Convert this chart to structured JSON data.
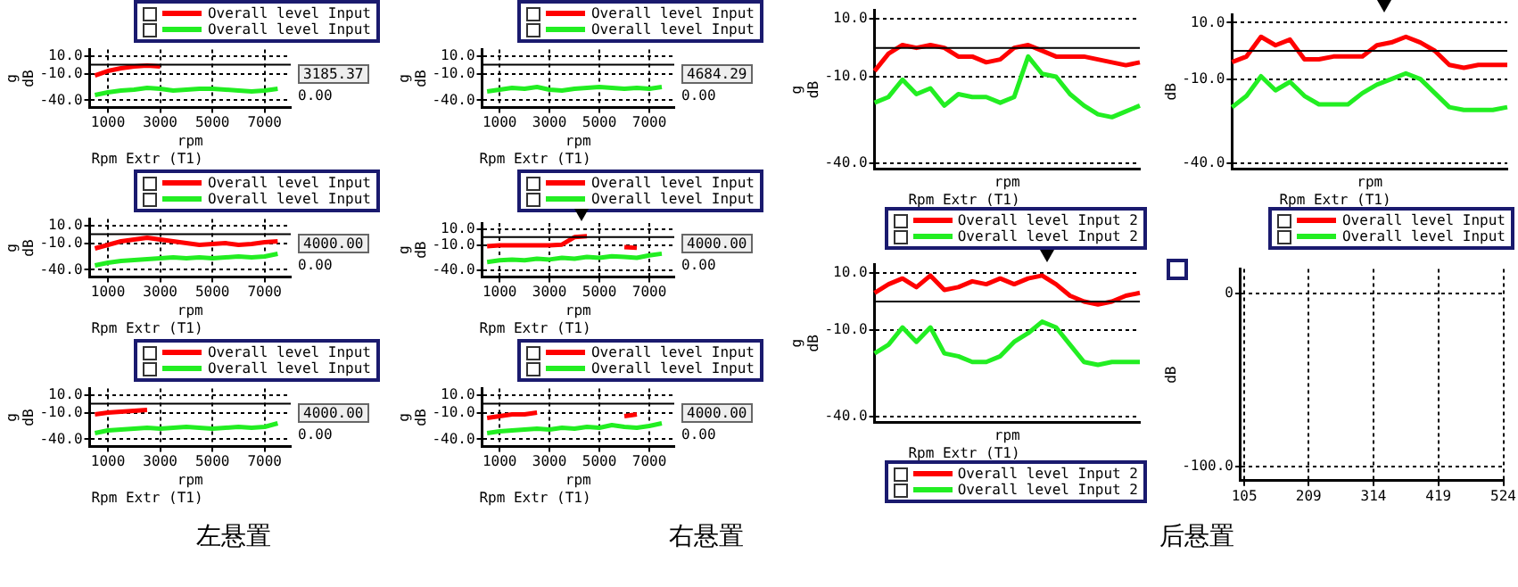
{
  "chart_data": [
    {
      "type": "line",
      "xlabel": "rpm",
      "subtitle": "Rpm Extr (T1)",
      "ylabel": "g\ndB",
      "x": [
        500,
        1000,
        1500,
        2000,
        2500,
        3000,
        3500,
        4000,
        4500,
        5000,
        5500,
        6000,
        6500,
        7000,
        7500
      ],
      "xlim": [
        300,
        8000
      ],
      "xticks": [
        1000,
        3000,
        5000,
        7000
      ],
      "ylim": [
        -48,
        17
      ],
      "yticks": [
        {
          "value": 10,
          "label": "10.0"
        },
        {
          "value": -10,
          "label": "-10.0"
        },
        {
          "value": -40,
          "label": "-40.0"
        }
      ],
      "grid": true,
      "legend": "top right",
      "marker": "none",
      "ref_lines": [
        {
          "axis": "y",
          "value": 0
        }
      ],
      "annotations": [
        "3185.37",
        "0.00"
      ],
      "series": [
        {
          "name": "Overall level Input",
          "color": "#ff0000",
          "values": [
            -12,
            -7,
            -4,
            -2,
            -1,
            -2,
            null,
            null,
            null,
            null,
            null,
            null,
            null,
            null,
            null
          ]
        },
        {
          "name": "Overall level Input",
          "color": "#22ee22",
          "values": [
            -34,
            -31,
            -29,
            -28,
            -26,
            -27,
            -29,
            -28,
            -27,
            -27,
            -28,
            -29,
            -30,
            -29,
            -27
          ]
        }
      ]
    },
    {
      "type": "line",
      "xlabel": "rpm",
      "subtitle": "Rpm Extr (T1)",
      "ylabel": "g\ndB",
      "x": [
        500,
        1000,
        1500,
        2000,
        2500,
        3000,
        3500,
        4000,
        4500,
        5000,
        5500,
        6000,
        6500,
        7000,
        7500
      ],
      "xlim": [
        300,
        8000
      ],
      "xticks": [
        1000,
        3000,
        5000,
        7000
      ],
      "ylim": [
        -48,
        17
      ],
      "yticks": [
        {
          "value": 10,
          "label": "10.0"
        },
        {
          "value": -10,
          "label": "-10.0"
        },
        {
          "value": -40,
          "label": "-40.0"
        }
      ],
      "grid": true,
      "legend": "top right",
      "marker": "none",
      "ref_lines": [
        {
          "axis": "y",
          "value": 0
        }
      ],
      "annotations": [
        "4684.29",
        "0.00"
      ],
      "series": [
        {
          "name": "Overall level Input",
          "color": "#ff0000",
          "values": [
            null,
            null,
            null,
            null,
            null,
            null,
            null,
            null,
            null,
            null,
            null,
            null,
            null,
            null,
            null
          ]
        },
        {
          "name": "Overall level Input",
          "color": "#22ee22",
          "values": [
            -30,
            -28,
            -26,
            -27,
            -25,
            -28,
            -29,
            -27,
            -26,
            -25,
            -26,
            -27,
            -26,
            -27,
            -25
          ]
        }
      ]
    },
    {
      "type": "line",
      "xlabel": "rpm",
      "subtitle": "Rpm Extr (T1)",
      "ylabel": "g\ndB",
      "categories": [
        null,
        null,
        null,
        null,
        null,
        null,
        null,
        null,
        null,
        null,
        null,
        null,
        null,
        null,
        null,
        null,
        null,
        null,
        null,
        null
      ],
      "ylim": [
        -42,
        13
      ],
      "yticks": [
        {
          "value": 10,
          "label": "10.0"
        },
        {
          "value": -10,
          "label": "-10.0"
        },
        {
          "value": -40,
          "label": "-40.0"
        }
      ],
      "tick_labels": "y",
      "grid": "y",
      "legend": "bottom",
      "marker": "none",
      "ref_lines": [
        {
          "axis": "y",
          "value": 0
        }
      ],
      "series": [
        {
          "name": "Overall level Input 2",
          "color": "#ff0000",
          "values": [
            -8,
            -2,
            1,
            0,
            1,
            0,
            -3,
            -3,
            -5,
            -4,
            0,
            1,
            -1,
            -3,
            -3,
            -3,
            -4,
            -5,
            -6,
            -5
          ]
        },
        {
          "name": "Overall level Input 2",
          "color": "#22ee22",
          "values": [
            -19,
            -17,
            -11,
            -16,
            -14,
            -20,
            -16,
            -17,
            -17,
            -19,
            -17,
            -3,
            -9,
            -10,
            -16,
            -20,
            -23,
            -24,
            -22,
            -20
          ]
        }
      ]
    },
    {
      "type": "line",
      "xlabel": "rpm",
      "subtitle": "Rpm Extr (T1)",
      "ylabel": "dB",
      "categories": [
        null,
        null,
        null,
        null,
        null,
        null,
        null,
        null,
        null,
        null,
        null,
        null,
        null,
        null,
        null,
        null,
        null,
        null,
        null,
        null
      ],
      "ylim": [
        -42,
        13
      ],
      "yticks": [
        {
          "value": 10,
          "label": "10.0"
        },
        {
          "value": -10,
          "label": "-10.0"
        },
        {
          "value": -40,
          "label": "-40.0"
        }
      ],
      "tick_labels": "y",
      "grid": "y",
      "legend": "bottom",
      "marker": "none",
      "ref_lines": [
        {
          "axis": "y",
          "value": 0
        }
      ],
      "series": [
        {
          "name": "Overall level Input",
          "color": "#ff0000",
          "values": [
            -4,
            -2,
            5,
            2,
            4,
            -3,
            -3,
            -2,
            -2,
            -2,
            2,
            3,
            5,
            3,
            0,
            -5,
            -6,
            -5,
            -5,
            -5
          ]
        },
        {
          "name": "Overall level Input",
          "color": "#22ee22",
          "values": [
            -20,
            -16,
            -9,
            -14,
            -11,
            -16,
            -19,
            -19,
            -19,
            -15,
            -12,
            -10,
            -8,
            -10,
            -15,
            -20,
            -21,
            -21,
            -21,
            -20
          ]
        }
      ]
    },
    {
      "type": "line",
      "xlabel": "rpm",
      "subtitle": "Rpm Extr (T1)",
      "ylabel": "g\ndB",
      "x": [
        500,
        1000,
        1500,
        2000,
        2500,
        3000,
        3500,
        4000,
        4500,
        5000,
        5500,
        6000,
        6500,
        7000,
        7500
      ],
      "xlim": [
        300,
        8000
      ],
      "xticks": [
        1000,
        3000,
        5000,
        7000
      ],
      "ylim": [
        -48,
        17
      ],
      "yticks": [
        {
          "value": 10,
          "label": "10.0"
        },
        {
          "value": -10,
          "label": "-10.0"
        },
        {
          "value": -40,
          "label": "-40.0"
        }
      ],
      "grid": true,
      "legend": "top right",
      "marker": "none",
      "ref_lines": [
        {
          "axis": "y",
          "value": 0
        }
      ],
      "annotations": [
        "4000.00",
        "0.00"
      ],
      "series": [
        {
          "name": "Overall level Input",
          "color": "#ff0000",
          "values": [
            -16,
            -12,
            -8,
            -6,
            -4,
            -6,
            -8,
            -10,
            -12,
            -11,
            -10,
            -12,
            -11,
            -9,
            -8
          ]
        },
        {
          "name": "Overall level Input",
          "color": "#22ee22",
          "values": [
            -35,
            -32,
            -30,
            -29,
            -28,
            -27,
            -26,
            -27,
            -26,
            -27,
            -26,
            -25,
            -26,
            -25,
            -22
          ]
        }
      ]
    },
    {
      "type": "line",
      "xlabel": "rpm",
      "subtitle": "Rpm Extr (T1)",
      "ylabel": "g\ndB",
      "x": [
        500,
        1000,
        1500,
        2000,
        2500,
        3000,
        3500,
        4000,
        4500,
        5000,
        5500,
        6000,
        6500,
        7000,
        7500
      ],
      "xlim": [
        300,
        8000
      ],
      "xticks": [
        1000,
        3000,
        5000,
        7000
      ],
      "ylim": [
        -48,
        17
      ],
      "yticks": [
        {
          "value": 10,
          "label": "10.0"
        },
        {
          "value": -10,
          "label": "-10.0"
        },
        {
          "value": -40,
          "label": "-40.0"
        }
      ],
      "grid": true,
      "legend": "top right",
      "marker": "none",
      "ref_lines": [
        {
          "axis": "y",
          "value": 0
        }
      ],
      "annotations": [
        "4000.00",
        "0.00"
      ],
      "series": [
        {
          "name": "Overall level Input",
          "color": "#ff0000",
          "values": [
            -11,
            -10,
            -10,
            -10,
            -10,
            -10,
            -9,
            0,
            1,
            null,
            null,
            -12,
            -13,
            null,
            null
          ]
        },
        {
          "name": "Overall level Input",
          "color": "#22ee22",
          "values": [
            -30,
            -28,
            -27,
            -28,
            -26,
            -27,
            -25,
            -26,
            -24,
            -25,
            -23,
            -24,
            -25,
            -22,
            -20
          ]
        }
      ]
    },
    {
      "type": "line",
      "xlabel": "rpm",
      "subtitle": "Rpm Extr (T1)",
      "ylabel": "g\ndB",
      "x": [
        500,
        1000,
        1500,
        2000,
        2500,
        3000,
        3500,
        4000,
        4500,
        5000,
        5500,
        6000,
        6500,
        7000,
        7500
      ],
      "xlim": [
        300,
        8000
      ],
      "xticks": [
        1000,
        3000,
        5000,
        7000
      ],
      "ylim": [
        -48,
        17
      ],
      "yticks": [
        {
          "value": 10,
          "label": "10.0"
        },
        {
          "value": -10,
          "label": "-10.0"
        },
        {
          "value": -40,
          "label": "-40.0"
        }
      ],
      "grid": true,
      "legend": "top right",
      "marker": "none",
      "ref_lines": [
        {
          "axis": "y",
          "value": 0
        }
      ],
      "annotations": [
        "4000.00",
        "0.00"
      ],
      "series": [
        {
          "name": "Overall level Input",
          "color": "#ff0000",
          "values": [
            -12,
            -10,
            -9,
            -8,
            -7,
            null,
            null,
            null,
            null,
            null,
            null,
            null,
            null,
            null,
            null
          ]
        },
        {
          "name": "Overall level Input",
          "color": "#22ee22",
          "values": [
            -33,
            -30,
            -29,
            -28,
            -27,
            -28,
            -27,
            -26,
            -27,
            -28,
            -27,
            -26,
            -27,
            -26,
            -22
          ]
        }
      ]
    },
    {
      "type": "line",
      "xlabel": "rpm",
      "subtitle": "Rpm Extr (T1)",
      "ylabel": "g\ndB",
      "x": [
        500,
        1000,
        1500,
        2000,
        2500,
        3000,
        3500,
        4000,
        4500,
        5000,
        5500,
        6000,
        6500,
        7000,
        7500
      ],
      "xlim": [
        300,
        8000
      ],
      "xticks": [
        1000,
        3000,
        5000,
        7000
      ],
      "ylim": [
        -48,
        17
      ],
      "yticks": [
        {
          "value": 10,
          "label": "10.0"
        },
        {
          "value": -10,
          "label": "-10.0"
        },
        {
          "value": -40,
          "label": "-40.0"
        }
      ],
      "grid": true,
      "legend": "top right",
      "marker": "none",
      "ref_lines": [
        {
          "axis": "y",
          "value": 0
        }
      ],
      "annotations": [
        "4000.00",
        "0.00"
      ],
      "series": [
        {
          "name": "Overall level Input",
          "color": "#ff0000",
          "values": [
            -16,
            -14,
            -12,
            -12,
            -10,
            null,
            null,
            null,
            null,
            null,
            null,
            -14,
            -12,
            null,
            null
          ]
        },
        {
          "name": "Overall level Input",
          "color": "#22ee22",
          "values": [
            -33,
            -31,
            -30,
            -29,
            -28,
            -29,
            -27,
            -28,
            -26,
            -27,
            -24,
            -26,
            -27,
            -25,
            -22
          ]
        }
      ]
    },
    {
      "type": "line",
      "xlabel": "rpm",
      "subtitle": "Rpm Extr (T1)",
      "ylabel": "g\ndB",
      "categories": [
        null,
        null,
        null,
        null,
        null,
        null,
        null,
        null,
        null,
        null,
        null,
        null,
        null,
        null,
        null,
        null,
        null,
        null,
        null,
        null
      ],
      "ylim": [
        -42,
        13
      ],
      "yticks": [
        {
          "value": 10,
          "label": "10.0"
        },
        {
          "value": -10,
          "label": "-10.0"
        },
        {
          "value": -40,
          "label": "-40.0"
        }
      ],
      "tick_labels": "y",
      "grid": "y",
      "legend": "bottom",
      "marker": "none",
      "ref_lines": [
        {
          "axis": "y",
          "value": 0
        }
      ],
      "series": [
        {
          "name": "Overall level Input 2",
          "color": "#ff0000",
          "values": [
            3,
            6,
            8,
            5,
            9,
            4,
            5,
            7,
            6,
            8,
            6,
            8,
            9,
            6,
            2,
            0,
            -1,
            0,
            2,
            3
          ]
        },
        {
          "name": "Overall level Input 2",
          "color": "#22ee22",
          "values": [
            -18,
            -15,
            -9,
            -14,
            -9,
            -18,
            -19,
            -21,
            -21,
            -19,
            -14,
            -11,
            -7,
            -9,
            -15,
            -21,
            -22,
            -21,
            -21,
            -21
          ]
        }
      ]
    },
    {
      "type": "line",
      "ylabel": "dB",
      "xlim": [
        99,
        525
      ],
      "xticks": [
        105,
        209,
        314,
        419,
        524
      ],
      "ylim": [
        -108,
        14
      ],
      "yticks": [
        {
          "value": 0,
          "label": "0"
        },
        {
          "value": -100,
          "label": "-100.0"
        }
      ],
      "grid": true
    },
    {
      "type": "other",
      "annotations": [
        "左悬置",
        "右悬置",
        "后悬置"
      ]
    }
  ]
}
